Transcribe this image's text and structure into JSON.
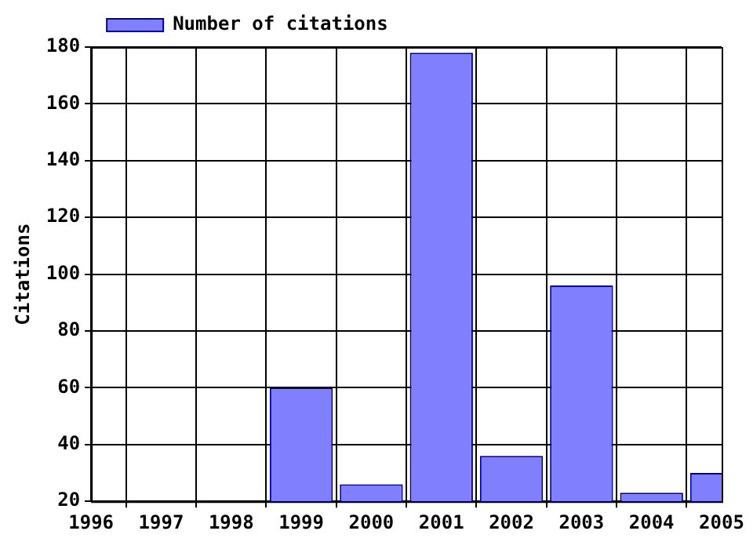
{
  "chart_data": {
    "type": "bar",
    "ylabel": "Citations",
    "x": [
      1999,
      2000,
      2001,
      2002,
      2003,
      2004,
      2005
    ],
    "series": [
      {
        "name": "Number of citations",
        "color": "#8080ff",
        "values": [
          60,
          26,
          178,
          36,
          96,
          23,
          30
        ]
      }
    ],
    "xlim": [
      1996,
      2005
    ],
    "xticks": [
      1996,
      1997,
      1998,
      1999,
      2000,
      2001,
      2002,
      2003,
      2004,
      2005
    ],
    "ylim": [
      20,
      180
    ],
    "yticks": [
      20,
      40,
      60,
      80,
      100,
      120,
      140,
      160,
      180
    ],
    "grid": true,
    "legend": "top left"
  }
}
